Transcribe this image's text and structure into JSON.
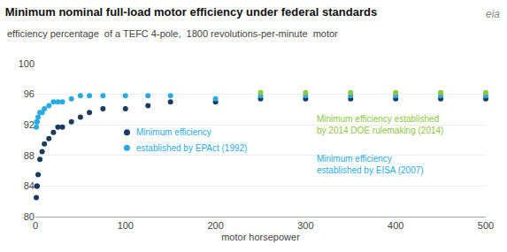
{
  "chart_data": {
    "type": "scatter",
    "title": "Minimum nominal full-load motor efficiency under federal standards",
    "subtitle": "efficiency percentage  of a TEFC 4-pole,  1800 revolutions-per-minute  motor",
    "logo": "eia",
    "xlabel": "motor horsepower",
    "xlim": [
      0,
      500
    ],
    "ylim": [
      80,
      100
    ],
    "xticks": [
      0,
      100,
      200,
      300,
      400,
      500
    ],
    "yticks": [
      80,
      84,
      88,
      92,
      96,
      100
    ],
    "grid": true,
    "series": [
      {
        "color": "#1b3a5c",
        "x": [
          1,
          1.5,
          2,
          3,
          5,
          7.5,
          10,
          15,
          20,
          25,
          30,
          40,
          50,
          60,
          75,
          100,
          125,
          150,
          200,
          250,
          300,
          350,
          400,
          450,
          500
        ],
        "values": [
          82.5,
          84.0,
          84.0,
          85.5,
          87.5,
          88.5,
          89.5,
          90.2,
          91.0,
          91.7,
          91.7,
          92.4,
          93.0,
          93.6,
          94.1,
          94.1,
          94.5,
          95.0,
          95.0,
          95.4,
          95.4,
          95.4,
          95.4,
          95.4,
          95.4
        ]
      },
      {
        "color": "#29abe2",
        "x": [
          1,
          1.5,
          2,
          3,
          5,
          7.5,
          10,
          15,
          20,
          25,
          30,
          40,
          50,
          60,
          75,
          100,
          125,
          150,
          200
        ],
        "values": [
          91.7,
          92.4,
          92.4,
          93.0,
          93.6,
          93.6,
          94.1,
          94.5,
          95.0,
          95.0,
          95.0,
          95.4,
          95.8,
          95.8,
          95.8,
          95.8,
          95.8,
          95.8,
          95.4
        ]
      },
      {
        "color": "#29abe2",
        "x": [
          250,
          300,
          350,
          400,
          450,
          500
        ],
        "values": [
          95.8,
          95.8,
          95.8,
          95.8,
          95.8,
          95.8
        ]
      },
      {
        "color": "#8dc63f",
        "x": [
          250,
          300,
          350,
          400,
          450,
          500
        ],
        "values": [
          96.2,
          96.2,
          96.2,
          96.2,
          96.2,
          96.2
        ]
      }
    ],
    "annotations": [
      {
        "text": "Minimum efficiency",
        "color": "#29abe2"
      },
      {
        "text": "established by EPAct (1992)",
        "color": "#29abe2"
      },
      {
        "text": "Minimum efficiency established\nby 2014 DOE rulemaking (2014)",
        "color": "#8dc63f"
      },
      {
        "text": "Minimum efficiency\nestablished by EISA (2007)",
        "color": "#29abe2"
      }
    ]
  }
}
